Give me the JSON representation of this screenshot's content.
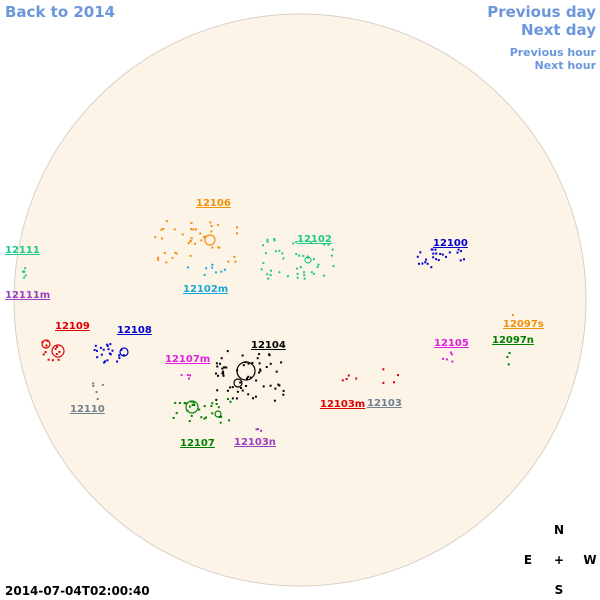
{
  "nav": {
    "back": "Back to 2014",
    "previous_day": "Previous day",
    "next_day": "Next day",
    "previous_hour": "Previous hour",
    "next_hour": "Next hour"
  },
  "regions": [
    {
      "label": "12106",
      "color": "#f0900a"
    },
    {
      "label": "12111",
      "color": "#1ec98a"
    },
    {
      "label": "12111m",
      "color": "#9b3fc0"
    },
    {
      "label": "12102",
      "color": "#1ec98a"
    },
    {
      "label": "12102m",
      "color": "#18a8d8"
    },
    {
      "label": "12100",
      "color": "#0000cc"
    },
    {
      "label": "12109",
      "color": "#dd0000"
    },
    {
      "label": "12108",
      "color": "#0000cc"
    },
    {
      "label": "12105",
      "color": "#e020e0"
    },
    {
      "label": "12097s",
      "color": "#f0900a"
    },
    {
      "label": "12097n",
      "color": "#008000"
    },
    {
      "label": "12104",
      "color": "#000000"
    },
    {
      "label": "12107m",
      "color": "#e020e0"
    },
    {
      "label": "12110",
      "color": "#708090"
    },
    {
      "label": "12103m",
      "color": "#dd0000"
    },
    {
      "label": "12103",
      "color": "#708090"
    },
    {
      "label": "12107",
      "color": "#008000"
    },
    {
      "label": "12103n",
      "color": "#9b3fc0"
    }
  ],
  "timestamp": "2014-07-04T02:00:40",
  "compass": {
    "n": "N",
    "e": "E",
    "center": "+",
    "w": "W",
    "s": "S"
  }
}
